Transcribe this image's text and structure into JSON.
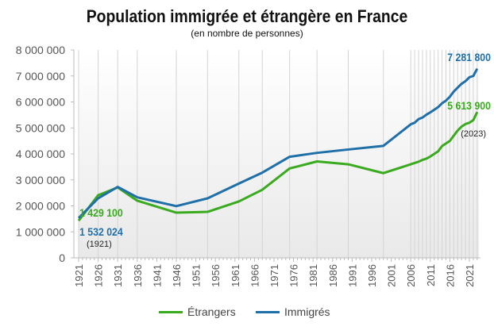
{
  "chart_data": {
    "type": "line",
    "title": "Population immigrée et étrangère en France",
    "subtitle": "(en nombre de personnes)",
    "xlabel": "",
    "ylabel": "",
    "ylim": [
      0,
      8000000
    ],
    "yticks": [
      "0",
      "1 000 000",
      "2 000 000",
      "3 000 000",
      "4 000 000",
      "5 000 000",
      "6 000 000",
      "7 000 000",
      "8 000 000"
    ],
    "xticks": [
      "1921",
      "1926",
      "1931",
      "1936",
      "1941",
      "1946",
      "1951",
      "1956",
      "1961",
      "1966",
      "1971",
      "1976",
      "1981",
      "1986",
      "1991",
      "1996",
      "2001",
      "2006",
      "2011",
      "2016",
      "2021"
    ],
    "xlim": [
      1921,
      2023
    ],
    "grid": "vertical lines at data years",
    "legend_position": "bottom",
    "x": [
      1921,
      1926,
      1931,
      1936,
      1946,
      1954,
      1962,
      1968,
      1975,
      1982,
      1990,
      1999,
      2006,
      2007,
      2008,
      2009,
      2010,
      2011,
      2012,
      2013,
      2014,
      2015,
      2016,
      2017,
      2018,
      2019,
      2020,
      2021,
      2022,
      2023
    ],
    "series": [
      {
        "name": "Étrangers",
        "color": "#3aaa1e",
        "values": [
          1429100,
          2410000,
          2710000,
          2200000,
          1740000,
          1770000,
          2170000,
          2620000,
          3440000,
          3710000,
          3600000,
          3260000,
          3600000,
          3650000,
          3700000,
          3770000,
          3820000,
          3900000,
          4000000,
          4100000,
          4300000,
          4400000,
          4500000,
          4700000,
          4900000,
          5050000,
          5150000,
          5200000,
          5300000,
          5613900
        ]
      },
      {
        "name": "Immigrés",
        "color": "#1f6fa8",
        "values": [
          1532024,
          2290000,
          2730000,
          2330000,
          1990000,
          2290000,
          2860000,
          3280000,
          3890000,
          4040000,
          4170000,
          4310000,
          5140000,
          5200000,
          5340000,
          5400000,
          5510000,
          5600000,
          5700000,
          5800000,
          5950000,
          6050000,
          6200000,
          6400000,
          6550000,
          6700000,
          6800000,
          6950000,
          7000000,
          7281800
        ]
      }
    ],
    "annotations": [
      {
        "text": "1 429 100",
        "series": "Étrangers"
      },
      {
        "text": "1 532 024",
        "series": "Immigrés"
      },
      {
        "text": "(1921)"
      },
      {
        "text": "7 281 800",
        "series": "Immigrés"
      },
      {
        "text": "5 613 900",
        "series": "Étrangers"
      },
      {
        "text": "(2023)"
      }
    ]
  }
}
